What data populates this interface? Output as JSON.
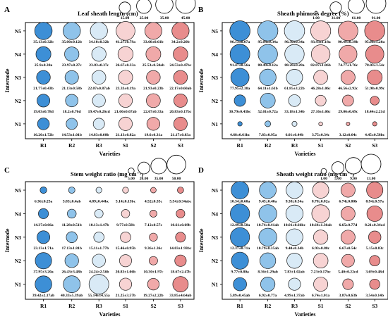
{
  "chart_data": [
    {
      "type": "bubble",
      "panel_label": "A",
      "title": "Leaf sheath length (cm)",
      "xlabel": "Varieties",
      "ylabel": "Internode",
      "categories": [
        "R1",
        "R2",
        "R3",
        "S1",
        "S2",
        "S3"
      ],
      "internodes": [
        "N1",
        "N2",
        "N3",
        "N4",
        "N5"
      ],
      "legend_sizes": [
        "15.00",
        "25.00",
        "35.00",
        "45.00"
      ],
      "legend_values": [
        15,
        25,
        35,
        45
      ],
      "scale_max": 45,
      "values": [
        [
          16.2,
          14.53,
          14.83,
          21.13,
          19.6,
          21.17
        ],
        [
          19.03,
          18.2,
          19.47,
          21.6,
          22.67,
          20.83
        ],
        [
          21.77,
          21.13,
          22.07,
          23.33,
          21.93,
          22.17
        ],
        [
          25.9,
          23.97,
          23.83,
          26.67,
          25.53,
          24.53
        ],
        [
          35.13,
          35.0,
          34.1,
          41.27,
          33.6,
          34.2
        ]
      ],
      "labels": [
        [
          "16.20±1.72b",
          "14.53±1.01b",
          "14.83±0.60b",
          "21.13±0.82a",
          "19.6±0.31a",
          "21.17±0.83a"
        ],
        [
          "19.03±0.78d",
          "18.2±0.76d",
          "19.47±0.26cd",
          "21.60±0.67ab",
          "22.67±0.33a",
          "20.83±0.17bc"
        ],
        [
          "21.77±0.43b",
          "21.13±0.58b",
          "22.07±0.87ab",
          "23.33±0.19a",
          "21.93±0.23b",
          "22.17±0.60ab"
        ],
        [
          "25.9±0.38a",
          "23.97±0.27c",
          "23.83±0.37c",
          "26.67±0.33a",
          "25.53±0.50ab",
          "24.53±0.47bc"
        ],
        [
          "35.13±0.32b",
          "35.00±0.12b",
          "34.10±0.32b",
          "41.27±0.79a",
          "33.60±0.61b",
          "34.2±0.20b"
        ]
      ]
    },
    {
      "type": "bubble",
      "panel_label": "B",
      "title": "Sheath phimosis degree (%)",
      "xlabel": "Varieties",
      "ylabel": "Internode",
      "categories": [
        "R1",
        "R2",
        "R3",
        "S1",
        "S2",
        "S3"
      ],
      "internodes": [
        "N1",
        "N2",
        "N3",
        "N4",
        "N5"
      ],
      "legend_sizes": [
        "1.00",
        "31.00",
        "61.00",
        "91.00"
      ],
      "legend_values": [
        1,
        31,
        61,
        91
      ],
      "scale_max": 91,
      "values": [
        [
          4.68,
          7.83,
          6.01,
          3.75,
          3.12,
          4.45
        ],
        [
          30.79,
          52.01,
          33.18,
          27.16,
          29.06,
          18.44
        ],
        [
          77.95,
          64.11,
          61.85,
          46.28,
          46.56,
          51.98
        ],
        [
          91.47,
          88.49,
          88.28,
          82.07,
          74.77,
          78.03
        ],
        [
          96.13,
          95.04,
          96.3,
          93.93,
          90.49,
          95.06
        ]
      ],
      "labels": [
        [
          "4.68±0.61bc",
          "7.83±0.95a",
          "6.01±0.44b",
          "3.75±0.34c",
          "3.12±0.04c",
          "4.45±0.58bc"
        ],
        [
          "30.79±0.43bc",
          "52.01±0.72a",
          "33.18±1.34b",
          "27.16±1.06c",
          "29.06±0.69c",
          "18.44±2.21d"
        ],
        [
          "77.95±2.38a",
          "64.11±1.61b",
          "61.85±3.22b",
          "46.28±1.06c",
          "46.56±2.92c",
          "51.98±0.99c"
        ],
        [
          "91.47±0.56a",
          "88.49±0.12a",
          "88.28±0.28a",
          "82.07±1.06b",
          "74.77±1.76c",
          "78.03±1.54c"
        ],
        [
          "96.13±0.07a",
          "95.04±0.34a",
          "96.30±0.34a",
          "93.93±1.18a",
          "90.49±0.39b",
          "95.06±1.20a"
        ]
      ]
    },
    {
      "type": "bubble",
      "panel_label": "C",
      "title": "Stem weight ratio (mg cm⁻¹)",
      "xlabel": "Varieties",
      "ylabel": "Internode",
      "categories": [
        "R1",
        "R2",
        "R3",
        "S1",
        "S2",
        "S3"
      ],
      "internodes": [
        "N1",
        "N2",
        "N3",
        "N4",
        "N5"
      ],
      "legend_sizes": [
        "5.00",
        "20.00",
        "35.00",
        "50.00"
      ],
      "legend_values": [
        5,
        20,
        35,
        50
      ],
      "scale_max": 55,
      "values": [
        [
          39.42,
          40.33,
          55.14,
          21.25,
          19.27,
          33.85
        ],
        [
          37.95,
          26.43,
          24.24,
          20.83,
          10.3,
          18.67
        ],
        [
          23.13,
          17.13,
          15.11,
          15.46,
          9.36,
          14.03
        ],
        [
          14.37,
          11.28,
          10.13,
          9.77,
          7.12,
          10.61
        ],
        [
          6.36,
          5.83,
          4.89,
          5.14,
          4.52,
          5.54
        ]
      ],
      "labels": [
        [
          "39.42±2.17ab",
          "40.33±5.39ab",
          "55.14±14.55a",
          "21.25±3.57b",
          "19.27±2.22b",
          "33.85±4.64ab"
        ],
        [
          "37.95±3.20a",
          "26.43±3.48b",
          "24.24±2.56b",
          "20.83±1.06b",
          "10.30±1.97c",
          "18.67±2.47b"
        ],
        [
          "23.13±1.71a",
          "17.13±1.81b",
          "15.11±1.77b",
          "15.46±0.95b",
          "9.36±1.36c",
          "14.03±1.93bc"
        ],
        [
          "14.37±0.66a",
          "11.28±0.51b",
          "10.13±1.47b",
          "9.77±0.58b",
          "7.12±0.57c",
          "10.61±0.69b"
        ],
        [
          "6.36±0.25a",
          "5.83±0.4ab",
          "4.89±0.44bc",
          "5.14±0.13bc",
          "4.52±0.35c",
          "5.54±0.34abc"
        ]
      ]
    },
    {
      "type": "bubble",
      "panel_label": "D",
      "title": "Sheath weight ratio (mg cm⁻¹)",
      "xlabel": "Varieties",
      "ylabel": "Internode",
      "categories": [
        "R1",
        "R2",
        "R3",
        "S1",
        "S2",
        "S3"
      ],
      "internodes": [
        "N1",
        "N2",
        "N3",
        "N4",
        "N5"
      ],
      "legend_sizes": [
        "1.00",
        "5.00",
        "9.00",
        "13.00"
      ],
      "legend_values": [
        1,
        5,
        9,
        13
      ],
      "scale_max": 13,
      "values": [
        [
          5.89,
          6.92,
          4.99,
          6.74,
          3.87,
          3.54
        ],
        [
          9.77,
          8.36,
          7.83,
          7.23,
          5.4,
          3.69
        ],
        [
          12.37,
          10.79,
          9.4,
          6.93,
          6.67,
          5.15
        ],
        [
          12.49,
          10.74,
          10.01,
          10.64,
          6.65,
          8.21
        ],
        [
          10.34,
          9.45,
          9.38,
          8.78,
          6.74,
          8.94
        ]
      ],
      "labels": [
        [
          "5.89±0.45ab",
          "6.92±0.77a",
          "4.99±1.37ab",
          "6.74±1.01a",
          "3.87±0.63b",
          "3.54±0.14b"
        ],
        [
          "9.77±0.80a",
          "8.36±1.29ab",
          "7.83±1.02ab",
          "7.23±0.17bc",
          "5.40±0.22cd",
          "3.69±0.48d"
        ],
        [
          "12.37±0.71a",
          "10.79±0.35ab",
          "9.40±0.34b",
          "6.93±0.88c",
          "6.67±0.54c",
          "5.15±0.83c"
        ],
        [
          "12.49±0.50a",
          "10.74±0.41ab",
          "10.01±0.66bc",
          "10.64±1.30ab",
          "6.65±0.77d",
          "8.21±0.34cd"
        ],
        [
          "10.34±0.60a",
          "9.45±0.40a",
          "9.38±0.54a",
          "8.78±0.82a",
          "6.74±0.80b",
          "8.94±0.57a"
        ]
      ]
    }
  ],
  "colors": {
    "R1": "#3d8fd6",
    "R2": "#8fc3ea",
    "R3": "#d9eaf6",
    "S1": "#f7d3d3",
    "S2": "#f0a9a9",
    "S3": "#e88c8c"
  }
}
